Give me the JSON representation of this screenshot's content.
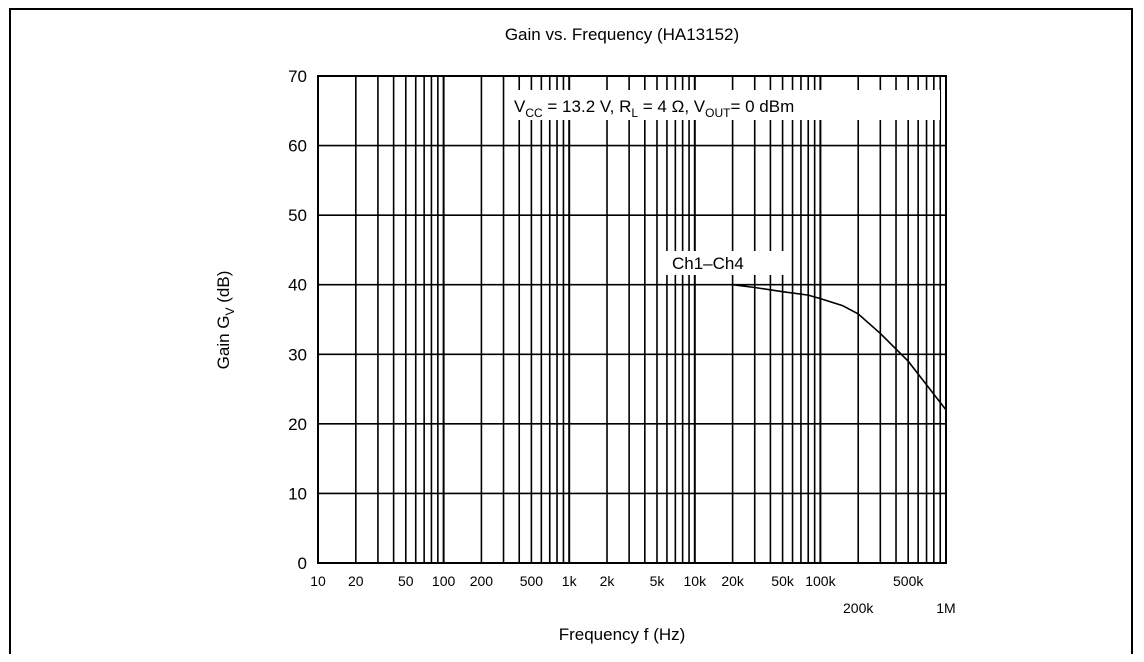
{
  "chart_data": {
    "type": "line",
    "title": "Gain vs. Frequency (HA13152)",
    "xlabel": "Frequency f (Hz)",
    "ylabel_main": "Gain G",
    "ylabel_sub": "V",
    "ylabel_unit": "(dB)",
    "xscale": "log",
    "xlim": [
      10,
      1000000
    ],
    "ylim": [
      0,
      70
    ],
    "yticks": [
      0,
      10,
      20,
      30,
      40,
      50,
      60,
      70
    ],
    "xticks": [
      {
        "value": 10,
        "label": "10",
        "row": 0
      },
      {
        "value": 20,
        "label": "20",
        "row": 0
      },
      {
        "value": 50,
        "label": "50",
        "row": 0
      },
      {
        "value": 100,
        "label": "100",
        "row": 0
      },
      {
        "value": 200,
        "label": "200",
        "row": 0
      },
      {
        "value": 500,
        "label": "500",
        "row": 0
      },
      {
        "value": 1000,
        "label": "1k",
        "row": 0
      },
      {
        "value": 2000,
        "label": "2k",
        "row": 0
      },
      {
        "value": 5000,
        "label": "5k",
        "row": 0
      },
      {
        "value": 10000,
        "label": "10k",
        "row": 0
      },
      {
        "value": 20000,
        "label": "20k",
        "row": 0
      },
      {
        "value": 50000,
        "label": "50k",
        "row": 0
      },
      {
        "value": 100000,
        "label": "100k",
        "row": 0
      },
      {
        "value": 200000,
        "label": "200k",
        "row": 1
      },
      {
        "value": 500000,
        "label": "500k",
        "row": 0
      },
      {
        "value": 1000000,
        "label": "1M",
        "row": 1
      }
    ],
    "grid": true,
    "conditions": {
      "vcc_main": "V",
      "vcc_sub": "CC",
      "vcc_rest": " = 13.2 V, R",
      "rl_sub": "L",
      "rl_rest": " = 4 Ω, V",
      "vout_sub": "OUT",
      "vout_rest": "= 0 dBm"
    },
    "series": [
      {
        "name": "Ch1–Ch4",
        "color": "#000000",
        "points": [
          [
            20000,
            40
          ],
          [
            30000,
            39.6
          ],
          [
            50000,
            39
          ],
          [
            80000,
            38.5
          ],
          [
            100000,
            38
          ],
          [
            150000,
            37
          ],
          [
            200000,
            35.8
          ],
          [
            300000,
            33
          ],
          [
            500000,
            29
          ],
          [
            1000000,
            22
          ]
        ]
      }
    ]
  }
}
